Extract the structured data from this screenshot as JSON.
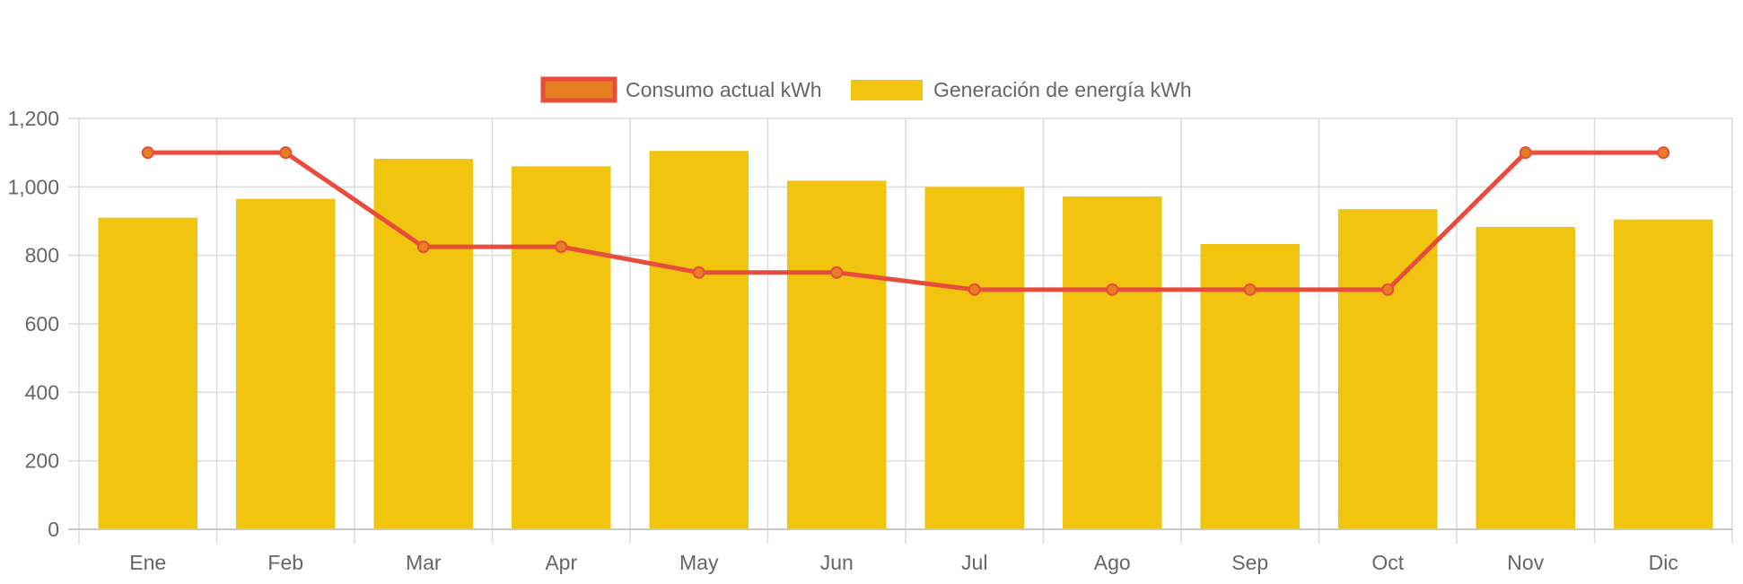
{
  "chart_data": {
    "type": "bar",
    "categories": [
      "Ene",
      "Feb",
      "Mar",
      "Apr",
      "May",
      "Jun",
      "Jul",
      "Ago",
      "Sep",
      "Oct",
      "Nov",
      "Dic"
    ],
    "series": [
      {
        "name": "Consumo actual kWh",
        "type": "line",
        "color": "#e74c3c",
        "point_color": "#e67e22",
        "values": [
          1100,
          1100,
          825,
          825,
          750,
          750,
          700,
          700,
          700,
          700,
          1100,
          1100
        ]
      },
      {
        "name": "Generación de energía kWh",
        "type": "bar",
        "color": "#f1c40f",
        "values": [
          910,
          965,
          1082,
          1060,
          1105,
          1018,
          1000,
          972,
          833,
          935,
          883,
          905
        ]
      }
    ],
    "ylim": [
      0,
      1200
    ],
    "yticks": [
      "0",
      "200",
      "400",
      "600",
      "800",
      "1,000",
      "1,200"
    ],
    "grid": true,
    "legend_position": "top"
  }
}
